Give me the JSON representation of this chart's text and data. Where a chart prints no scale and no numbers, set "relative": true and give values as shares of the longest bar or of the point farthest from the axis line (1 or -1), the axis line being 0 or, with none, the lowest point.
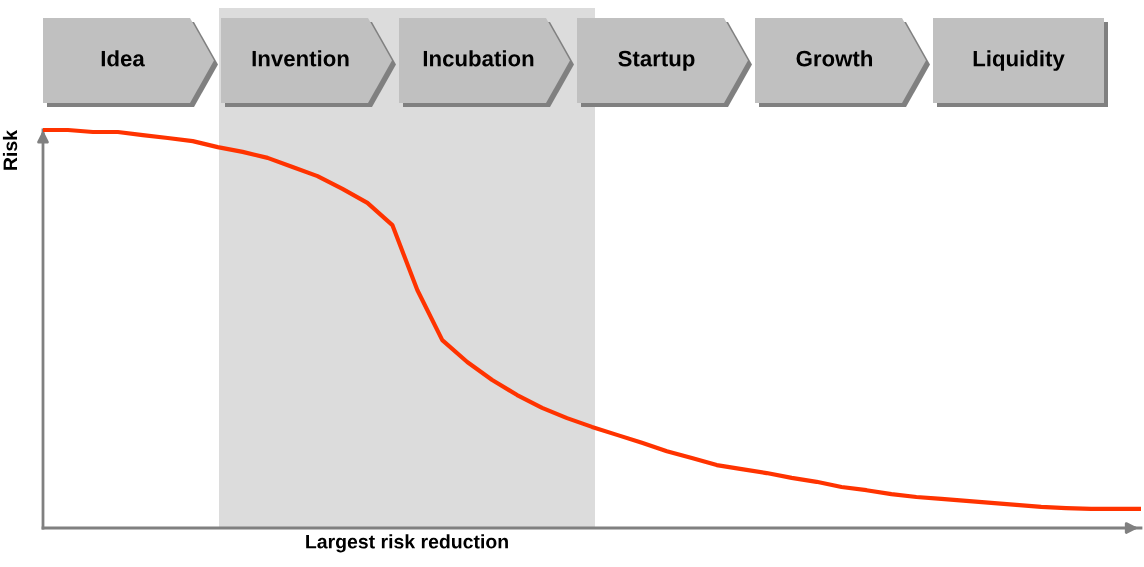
{
  "chart_data": {
    "type": "line",
    "relative": true,
    "ylabel": "Risk",
    "categories": [
      null,
      null,
      null,
      null,
      null,
      null,
      null,
      null,
      null,
      null,
      null,
      null,
      null,
      null,
      null,
      null,
      null,
      null,
      null,
      null,
      null,
      null,
      null,
      null,
      null,
      null,
      null,
      null,
      null,
      null,
      null,
      null,
      null,
      null,
      null,
      null,
      null,
      null,
      null,
      null,
      null,
      null,
      null,
      null,
      null
    ],
    "series": [
      {
        "color": "#ff3300",
        "values": [
          1.0,
          1.0,
          0.995,
          0.995,
          0.987,
          0.98,
          0.972,
          0.957,
          0.945,
          0.93,
          0.907,
          0.884,
          0.852,
          0.817,
          0.761,
          0.598,
          0.472,
          0.417,
          0.372,
          0.334,
          0.302,
          0.276,
          0.254,
          0.234,
          0.214,
          0.193,
          0.176,
          0.158,
          0.148,
          0.138,
          0.126,
          0.116,
          0.103,
          0.095,
          0.085,
          0.078,
          0.073,
          0.068,
          0.063,
          0.058,
          0.053,
          0.05,
          0.048,
          0.048,
          0.048
        ]
      }
    ],
    "xlabel": "Largest risk reduction",
    "annotations": [
      "Idea",
      "Invention",
      "Incubation",
      "Startup",
      "Growth",
      "Liquidity"
    ],
    "legend": false,
    "marker": "none",
    "line_style": "solid",
    "tick_labels": false
  }
}
